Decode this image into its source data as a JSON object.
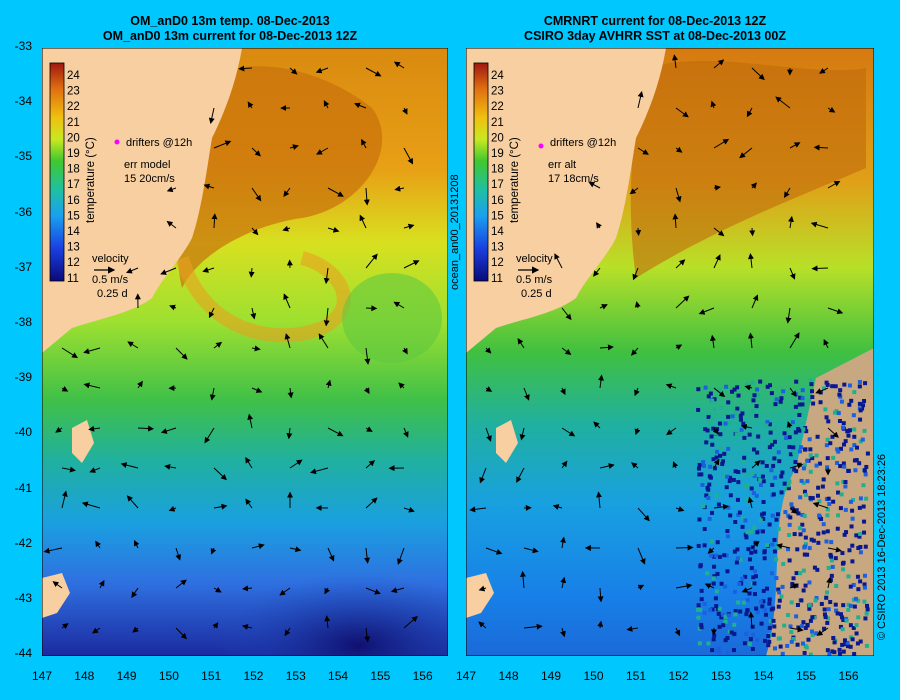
{
  "left_panel": {
    "title_line1": "OM_anD0 13m temp. 08-Dec-2013",
    "title_line2": "OM_anD0 13m current for 08-Dec-2013 12Z",
    "drifters_label": "drifters @12h",
    "err_label": "err model",
    "err_value": "15 20cm/s",
    "velocity_label": "velocity",
    "speed_label": "0.5 m/s",
    "time_label": "0.25 d"
  },
  "right_panel": {
    "title_line1": "CMRNRT current for 08-Dec-2013 12Z",
    "title_line2": "CSIRO 3day AVHRR SST at 08-Dec-2013 00Z",
    "drifters_label": "drifters @12h",
    "err_label": "err alt",
    "err_value": "17 18cm/s",
    "velocity_label": "velocity",
    "speed_label": "0.5 m/s",
    "time_label": "0.25 d"
  },
  "colorbar": {
    "label": "temperature (°C)",
    "ticks": [
      "24",
      "23",
      "22",
      "21",
      "20",
      "19",
      "18",
      "17",
      "16",
      "15",
      "14",
      "13",
      "12",
      "11"
    ]
  },
  "axes": {
    "lat_ticks": [
      "-33",
      "-34",
      "-35",
      "-36",
      "-37",
      "-38",
      "-39",
      "-40",
      "-41",
      "-42",
      "-43",
      "-44"
    ],
    "lon_ticks": [
      "147",
      "148",
      "149",
      "150",
      "151",
      "152",
      "153",
      "154",
      "155",
      "156"
    ]
  },
  "side_label": "ocean_an00_20131208",
  "copyright": "© CSIRO 2013   16-Dec-2013 18:23:26",
  "colors": {
    "background": "#00c8ff",
    "land": "#f7cfa0",
    "no_data": "#c8a880",
    "drifter": "#ff00ff"
  },
  "icons": [
    "velocity-arrow-icon",
    "drifter-marker-icon"
  ]
}
